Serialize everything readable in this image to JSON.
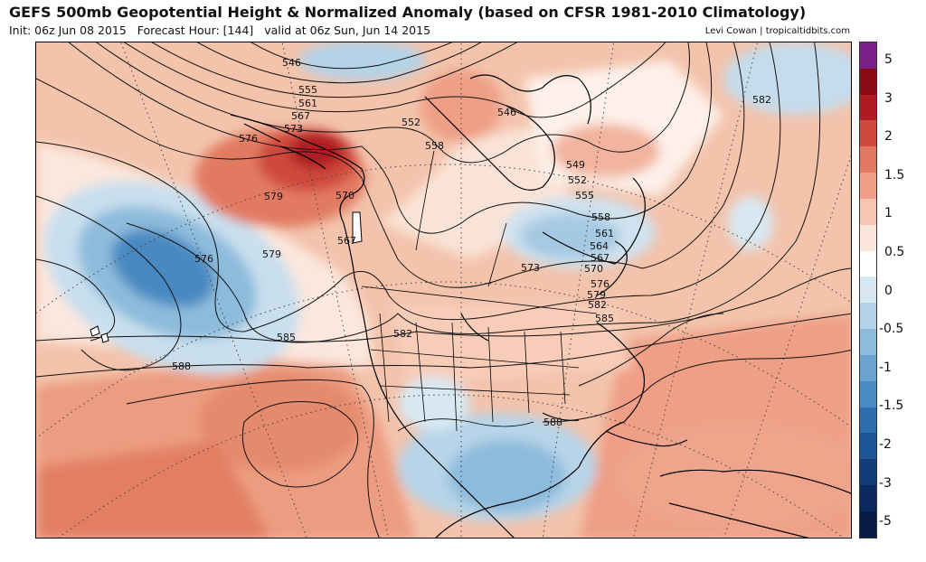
{
  "header": {
    "title": "GEFS 500mb Geopotential Height & Normalized Anomaly (based on CFSR 1981-2010 Climatology)",
    "init": "Init: 06z Jun 08 2015",
    "forecast_hour": "Forecast Hour: [144]",
    "valid": "valid at 06z Sun, Jun 14 2015",
    "credit": "Levi Cowan | tropicaltidbits.com"
  },
  "colorbar": {
    "labels": [
      "5",
      "3",
      "2",
      "1.5",
      "1",
      "0.5",
      "0",
      "-0.5",
      "-1",
      "-1.5",
      "-2",
      "-3",
      "-5"
    ],
    "colors": [
      "#7a1f88",
      "#8a0b14",
      "#b01b22",
      "#cf4a3c",
      "#e27a62",
      "#ef9f86",
      "#f7c6b3",
      "#fce5da",
      "#ffffff",
      "#d8e8f2",
      "#b4d3e8",
      "#8dbbdc",
      "#6aa3cf",
      "#4a89c1",
      "#2f6eae",
      "#1d5597",
      "#123d79",
      "#0c2a5e",
      "#081b45"
    ]
  },
  "contour_labels": [
    {
      "text": "546"
    },
    {
      "text": "555"
    },
    {
      "text": "561"
    },
    {
      "text": "567"
    },
    {
      "text": "573"
    },
    {
      "text": "576"
    },
    {
      "text": "579"
    },
    {
      "text": "570"
    },
    {
      "text": "567"
    },
    {
      "text": "576"
    },
    {
      "text": "579"
    },
    {
      "text": "552"
    },
    {
      "text": "558"
    },
    {
      "text": "546"
    },
    {
      "text": "549"
    },
    {
      "text": "552"
    },
    {
      "text": "555"
    },
    {
      "text": "558"
    },
    {
      "text": "561"
    },
    {
      "text": "564"
    },
    {
      "text": "567"
    },
    {
      "text": "570"
    },
    {
      "text": "573"
    },
    {
      "text": "576"
    },
    {
      "text": "579"
    },
    {
      "text": "582"
    },
    {
      "text": "585"
    },
    {
      "text": "582"
    },
    {
      "text": "585"
    },
    {
      "text": "588"
    },
    {
      "text": "588"
    },
    {
      "text": "582"
    }
  ]
}
